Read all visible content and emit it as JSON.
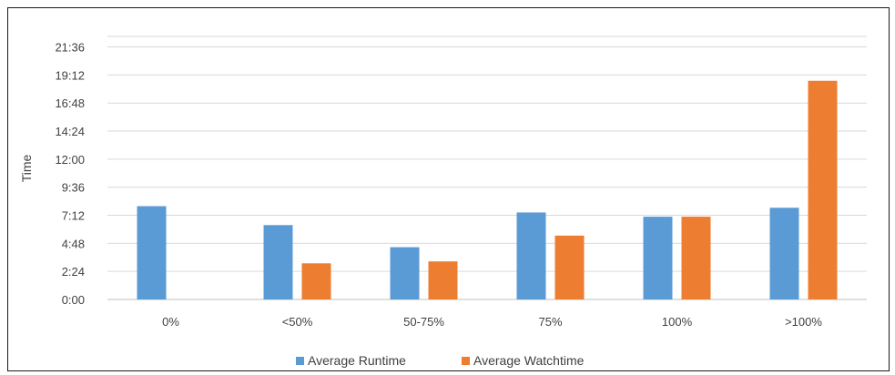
{
  "chart_data": {
    "type": "bar",
    "title": "",
    "xlabel": "",
    "ylabel": "Time",
    "categories": [
      "0%",
      "<50%",
      "50-75%",
      "75%",
      "100%",
      ">100%"
    ],
    "y_ticks": [
      "0:00",
      "2:24",
      "4:48",
      "7:12",
      "9:36",
      "12:00",
      "14:24",
      "16:48",
      "19:12",
      "21:36"
    ],
    "ylim_minutes": [
      0,
      1440
    ],
    "series": [
      {
        "name": "Average Runtime",
        "color": "#5b9bd5",
        "values_minutes": [
          532,
          424,
          298,
          496,
          472,
          523
        ]
      },
      {
        "name": "Average Watchtime",
        "color": "#ed7d31",
        "values_minutes": [
          0,
          206,
          217,
          364,
          472,
          1247
        ]
      }
    ],
    "grid": true,
    "legend_position": "bottom"
  }
}
